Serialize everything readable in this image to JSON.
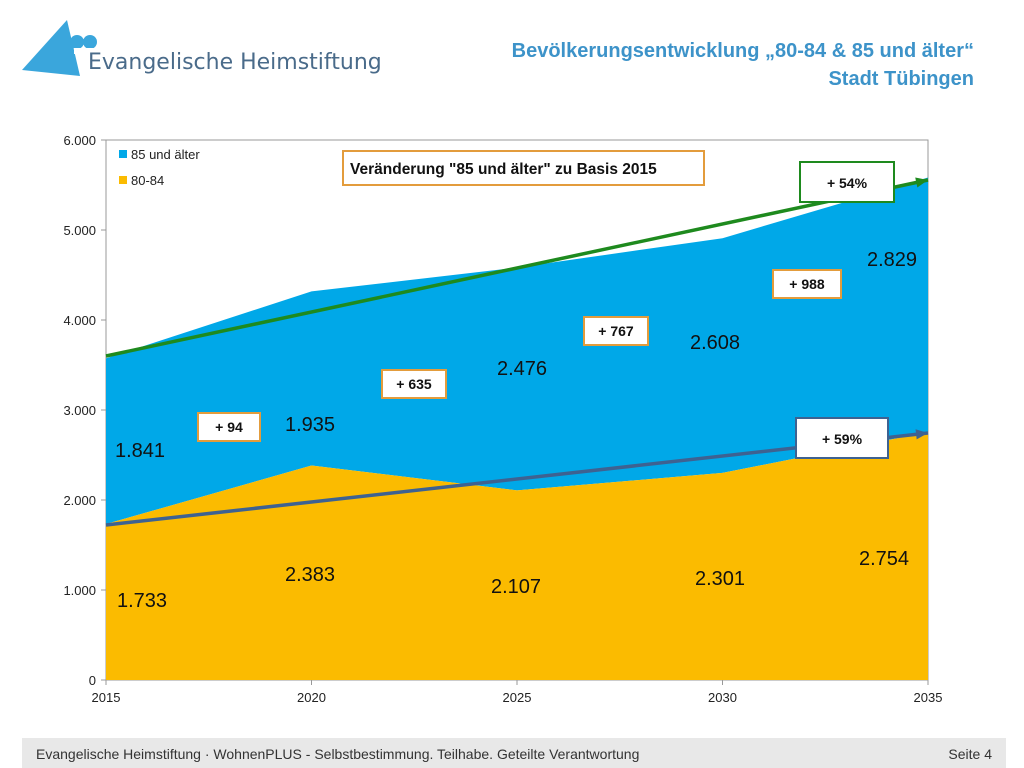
{
  "header": {
    "org_name": "Evangelische Heimstiftung",
    "title_line1": "Bevölkerungsentwicklung „80-84 & 85 und älter“",
    "title_line2": "Stadt Tübingen"
  },
  "colors": {
    "series_85": "#00a8e8",
    "series_80": "#fbbb00",
    "trend_85": "#1e8a1e",
    "trend_80": "#3e6291",
    "box_orange": "#e39c3c",
    "title": "#3d93c9"
  },
  "chart_data": {
    "type": "area",
    "stacked": true,
    "x": [
      2015,
      2020,
      2025,
      2030,
      2035
    ],
    "ylim": [
      0,
      6000
    ],
    "yticks": [
      "0",
      "1.000",
      "2.000",
      "3.000",
      "4.000",
      "5.000",
      "6.000"
    ],
    "xticks": [
      "2015",
      "2020",
      "2025",
      "2030",
      "2035"
    ],
    "series": [
      {
        "name": "80-84",
        "values": [
          1733,
          2383,
          2107,
          2301,
          2754
        ],
        "labels": [
          "1.733",
          "2.383",
          "2.107",
          "2.301",
          "2.754"
        ]
      },
      {
        "name": "85 und älter",
        "values": [
          1841,
          1935,
          2476,
          2608,
          2829
        ],
        "labels": [
          "1.841",
          "1.935",
          "2.476",
          "2.608",
          "2.829"
        ]
      }
    ],
    "legend": {
      "placement": "top-left",
      "entries": [
        "85 und älter",
        "80-84"
      ]
    },
    "annotations": {
      "box_title": "Veränderung \"85 und älter\" zu Basis 2015",
      "changes": [
        "+ 94",
        "+ 635",
        "+ 767",
        "+ 988"
      ],
      "trend_85_label": "+ 54%",
      "trend_80_label": "+ 59%"
    },
    "grid": false
  },
  "footer": {
    "text": "Evangelische Heimstiftung · WohnenPLUS - Selbstbestimmung. Teilhabe. Geteilte Verantwortung",
    "page": "Seite 4"
  }
}
